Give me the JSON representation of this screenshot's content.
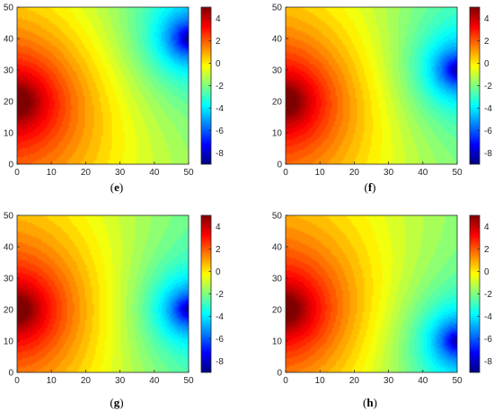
{
  "chart_data": [
    {
      "type": "heatmap",
      "label": "e",
      "x_ticks": [
        "0",
        "10",
        "20",
        "30",
        "40",
        "50"
      ],
      "y_ticks": [
        "0",
        "10",
        "20",
        "30",
        "40",
        "50"
      ],
      "xlim": [
        0,
        50
      ],
      "ylim": [
        0,
        50
      ],
      "colorbar_ticks": [
        "4",
        "2",
        "0",
        "-2",
        "-4",
        "-6",
        "-8"
      ],
      "colorbar_range": [
        -9,
        5
      ],
      "colormap": "jet",
      "sources": [
        {
          "x": 0,
          "y": 20,
          "value": 5
        },
        {
          "x": 50,
          "y": 40,
          "value": -8
        }
      ]
    },
    {
      "type": "heatmap",
      "label": "f",
      "x_ticks": [
        "0",
        "10",
        "20",
        "30",
        "40",
        "50"
      ],
      "y_ticks": [
        "0",
        "10",
        "20",
        "30",
        "40",
        "50"
      ],
      "xlim": [
        0,
        50
      ],
      "ylim": [
        0,
        50
      ],
      "colorbar_ticks": [
        "4",
        "2",
        "0",
        "-2",
        "-4",
        "-6",
        "-8"
      ],
      "colorbar_range": [
        -9,
        5
      ],
      "colormap": "jet",
      "sources": [
        {
          "x": 0,
          "y": 20,
          "value": 5
        },
        {
          "x": 50,
          "y": 30,
          "value": -8
        }
      ]
    },
    {
      "type": "heatmap",
      "label": "g",
      "x_ticks": [
        "0",
        "10",
        "20",
        "30",
        "40",
        "50"
      ],
      "y_ticks": [
        "0",
        "10",
        "20",
        "30",
        "40",
        "50"
      ],
      "xlim": [
        0,
        50
      ],
      "ylim": [
        0,
        50
      ],
      "colorbar_ticks": [
        "4",
        "2",
        "0",
        "-2",
        "-4",
        "-6",
        "-8"
      ],
      "colorbar_range": [
        -9,
        5
      ],
      "colormap": "jet",
      "sources": [
        {
          "x": 0,
          "y": 20,
          "value": 5
        },
        {
          "x": 50,
          "y": 20,
          "value": -8
        }
      ]
    },
    {
      "type": "heatmap",
      "label": "h",
      "x_ticks": [
        "0",
        "10",
        "20",
        "30",
        "40",
        "50"
      ],
      "y_ticks": [
        "0",
        "10",
        "20",
        "30",
        "40",
        "50"
      ],
      "xlim": [
        0,
        50
      ],
      "ylim": [
        0,
        50
      ],
      "colorbar_ticks": [
        "4",
        "2",
        "0",
        "-2",
        "-4",
        "-6",
        "-8"
      ],
      "colorbar_range": [
        -9,
        5
      ],
      "colormap": "jet",
      "sources": [
        {
          "x": 0,
          "y": 20,
          "value": 5
        },
        {
          "x": 50,
          "y": 10,
          "value": -8
        }
      ]
    }
  ]
}
